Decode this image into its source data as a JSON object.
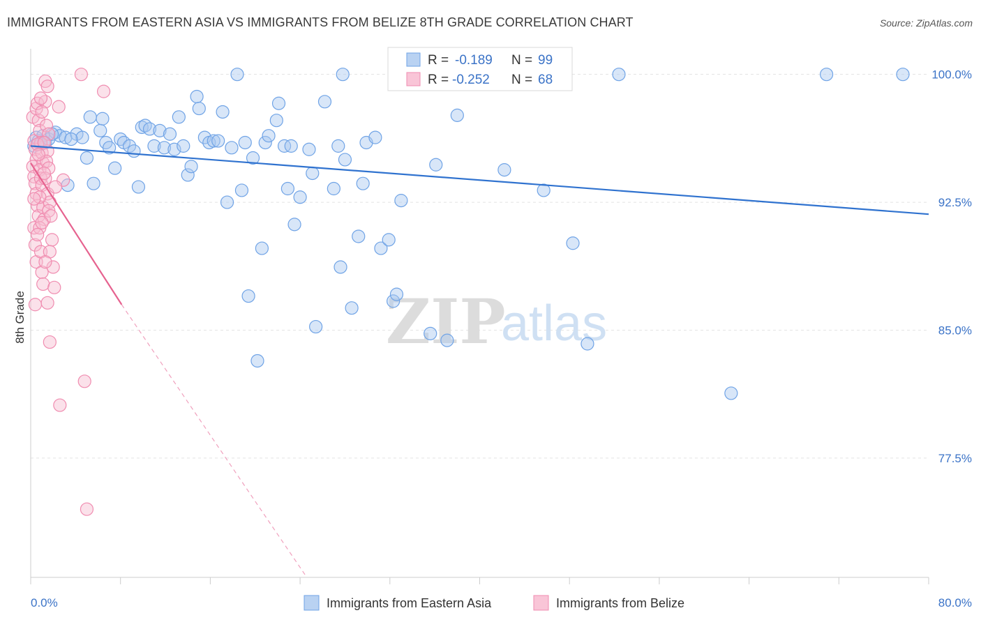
{
  "header": {
    "title": "IMMIGRANTS FROM EASTERN ASIA VS IMMIGRANTS FROM BELIZE 8TH GRADE CORRELATION CHART",
    "source": "Source: ZipAtlas.com"
  },
  "watermark": {
    "zip": "ZIP",
    "atlas": "atlas"
  },
  "legend_box": {
    "rows": [
      {
        "r_label": "R =",
        "r_value": "-0.189",
        "n_label": "N =",
        "n_value": "99"
      },
      {
        "r_label": "R =",
        "r_value": "-0.252",
        "n_label": "N =",
        "n_value": "68"
      }
    ]
  },
  "chart_data": {
    "type": "scatter",
    "title": "IMMIGRANTS FROM EASTERN ASIA VS IMMIGRANTS FROM BELIZE 8TH GRADE CORRELATION CHART",
    "xlabel": "",
    "ylabel": "8th Grade",
    "xlim": [
      0,
      80
    ],
    "ylim": [
      70.5,
      101.5
    ],
    "x_tick_labels": [
      "0.0%",
      "80.0%"
    ],
    "y_ticks": [
      100.0,
      92.5,
      85.0,
      77.5
    ],
    "y_tick_labels": [
      "100.0%",
      "92.5%",
      "85.0%",
      "77.5%"
    ],
    "grid": true,
    "legend_position": "bottom",
    "colors": {
      "eastern_asia": "#6fa3e6",
      "belize": "#f08cb0",
      "eastern_asia_line": "#2f72cf",
      "belize_line": "#e6628f"
    },
    "series": [
      {
        "name": "Immigrants from Eastern Asia",
        "r": -0.189,
        "n": 99,
        "trend": {
          "x0": 0,
          "y0": 95.8,
          "x1": 80,
          "y1": 91.8
        },
        "points": [
          [
            0.3,
            95.8
          ],
          [
            0.5,
            96.3
          ],
          [
            0.7,
            96.1
          ],
          [
            0.9,
            95.9
          ],
          [
            1.1,
            96.4
          ],
          [
            1.3,
            96.0
          ],
          [
            1.6,
            96.2
          ],
          [
            2.2,
            96.6
          ],
          [
            2.6,
            96.4
          ],
          [
            3.1,
            96.3
          ],
          [
            3.3,
            93.5
          ],
          [
            4.1,
            96.5
          ],
          [
            4.6,
            96.3
          ],
          [
            5.0,
            95.1
          ],
          [
            5.3,
            97.5
          ],
          [
            5.6,
            93.6
          ],
          [
            6.2,
            96.7
          ],
          [
            6.4,
            97.4
          ],
          [
            6.7,
            96.0
          ],
          [
            7.0,
            95.7
          ],
          [
            7.5,
            94.5
          ],
          [
            8.0,
            96.2
          ],
          [
            8.3,
            96.0
          ],
          [
            8.8,
            95.8
          ],
          [
            9.2,
            95.5
          ],
          [
            9.6,
            93.4
          ],
          [
            9.9,
            96.9
          ],
          [
            10.2,
            97.0
          ],
          [
            10.6,
            96.8
          ],
          [
            11.0,
            95.8
          ],
          [
            11.5,
            96.7
          ],
          [
            11.9,
            95.7
          ],
          [
            12.4,
            96.5
          ],
          [
            12.8,
            95.6
          ],
          [
            13.2,
            97.5
          ],
          [
            13.6,
            95.8
          ],
          [
            14.0,
            94.1
          ],
          [
            14.3,
            94.6
          ],
          [
            14.8,
            98.7
          ],
          [
            15.0,
            98.0
          ],
          [
            15.5,
            96.3
          ],
          [
            15.9,
            96.0
          ],
          [
            16.3,
            96.1
          ],
          [
            16.7,
            96.1
          ],
          [
            17.1,
            97.8
          ],
          [
            17.5,
            92.5
          ],
          [
            17.9,
            95.7
          ],
          [
            18.4,
            100.0
          ],
          [
            18.8,
            93.2
          ],
          [
            19.1,
            96.0
          ],
          [
            19.4,
            87.0
          ],
          [
            19.8,
            95.1
          ],
          [
            20.2,
            83.2
          ],
          [
            20.6,
            89.8
          ],
          [
            20.9,
            96.0
          ],
          [
            21.2,
            96.4
          ],
          [
            21.9,
            97.3
          ],
          [
            22.1,
            98.3
          ],
          [
            22.6,
            95.8
          ],
          [
            22.9,
            93.3
          ],
          [
            23.2,
            95.8
          ],
          [
            23.5,
            91.2
          ],
          [
            24.0,
            92.8
          ],
          [
            24.8,
            95.6
          ],
          [
            25.1,
            94.2
          ],
          [
            25.4,
            85.2
          ],
          [
            26.2,
            98.4
          ],
          [
            27.0,
            93.3
          ],
          [
            27.4,
            95.8
          ],
          [
            27.6,
            88.7
          ],
          [
            27.8,
            100.0
          ],
          [
            28.0,
            95.0
          ],
          [
            28.6,
            86.3
          ],
          [
            29.2,
            90.5
          ],
          [
            29.6,
            93.6
          ],
          [
            29.9,
            96.0
          ],
          [
            30.7,
            96.3
          ],
          [
            31.2,
            89.8
          ],
          [
            31.9,
            90.3
          ],
          [
            32.3,
            86.7
          ],
          [
            32.6,
            87.1
          ],
          [
            33.0,
            92.6
          ],
          [
            34.4,
            100.0
          ],
          [
            35.6,
            84.8
          ],
          [
            36.1,
            94.7
          ],
          [
            37.1,
            84.4
          ],
          [
            38.0,
            97.6
          ],
          [
            40.0,
            100.0
          ],
          [
            42.2,
            94.4
          ],
          [
            43.7,
            100.0
          ],
          [
            45.7,
            93.2
          ],
          [
            48.3,
            90.1
          ],
          [
            49.6,
            84.2
          ],
          [
            52.4,
            100.0
          ],
          [
            62.4,
            81.3
          ],
          [
            70.9,
            100.0
          ],
          [
            77.7,
            100.0
          ],
          [
            1.9,
            96.5
          ],
          [
            3.6,
            96.2
          ]
        ]
      },
      {
        "name": "Immigrants from Belize",
        "r": -0.252,
        "n": 68,
        "trend": {
          "x0": 0,
          "y0": 94.8,
          "x1": 8.1,
          "y1": 86.5
        },
        "trend_dashed": {
          "x0": 8.1,
          "y0": 86.5,
          "x1": 24.6,
          "y1": 70.5
        },
        "points": [
          [
            0.2,
            97.5
          ],
          [
            0.3,
            96.1
          ],
          [
            0.4,
            95.6
          ],
          [
            0.5,
            95.0
          ],
          [
            0.2,
            94.6
          ],
          [
            0.3,
            94.0
          ],
          [
            0.4,
            93.6
          ],
          [
            0.5,
            93.0
          ],
          [
            0.6,
            92.3
          ],
          [
            0.7,
            91.7
          ],
          [
            0.3,
            91.0
          ],
          [
            0.4,
            90.0
          ],
          [
            0.5,
            89.0
          ],
          [
            0.4,
            86.5
          ],
          [
            0.5,
            98.0
          ],
          [
            0.6,
            98.3
          ],
          [
            0.7,
            97.3
          ],
          [
            0.8,
            96.7
          ],
          [
            0.9,
            96.0
          ],
          [
            1.0,
            95.4
          ],
          [
            1.1,
            94.8
          ],
          [
            0.8,
            94.4
          ],
          [
            0.9,
            93.9
          ],
          [
            1.0,
            93.5
          ],
          [
            1.1,
            92.2
          ],
          [
            1.2,
            91.5
          ],
          [
            0.8,
            91.0
          ],
          [
            0.9,
            89.6
          ],
          [
            1.0,
            88.4
          ],
          [
            1.1,
            87.7
          ],
          [
            1.3,
            99.6
          ],
          [
            1.5,
            99.3
          ],
          [
            1.3,
            98.4
          ],
          [
            1.4,
            97.0
          ],
          [
            1.6,
            96.5
          ],
          [
            1.5,
            95.5
          ],
          [
            1.4,
            94.9
          ],
          [
            1.6,
            94.5
          ],
          [
            1.3,
            93.9
          ],
          [
            1.5,
            93.0
          ],
          [
            1.7,
            92.5
          ],
          [
            1.6,
            92.0
          ],
          [
            1.8,
            91.7
          ],
          [
            1.9,
            90.3
          ],
          [
            1.7,
            89.6
          ],
          [
            2.0,
            88.7
          ],
          [
            2.1,
            87.5
          ],
          [
            1.5,
            86.6
          ],
          [
            1.7,
            84.3
          ],
          [
            2.5,
            98.1
          ],
          [
            2.9,
            93.8
          ],
          [
            4.5,
            100.0
          ],
          [
            4.8,
            82.0
          ],
          [
            2.6,
            80.6
          ],
          [
            5.0,
            74.5
          ],
          [
            6.5,
            99.0
          ],
          [
            0.6,
            95.9
          ],
          [
            0.7,
            95.3
          ],
          [
            1.2,
            96.0
          ],
          [
            0.8,
            92.8
          ],
          [
            0.9,
            98.6
          ],
          [
            1.0,
            97.8
          ],
          [
            1.2,
            94.2
          ],
          [
            0.3,
            92.7
          ],
          [
            0.6,
            90.6
          ],
          [
            1.0,
            91.3
          ],
          [
            1.3,
            89.0
          ],
          [
            2.2,
            93.4
          ]
        ]
      }
    ]
  },
  "bottom_legend": {
    "items": [
      {
        "label": "Immigrants from Eastern Asia"
      },
      {
        "label": "Immigrants from Belize"
      }
    ]
  }
}
